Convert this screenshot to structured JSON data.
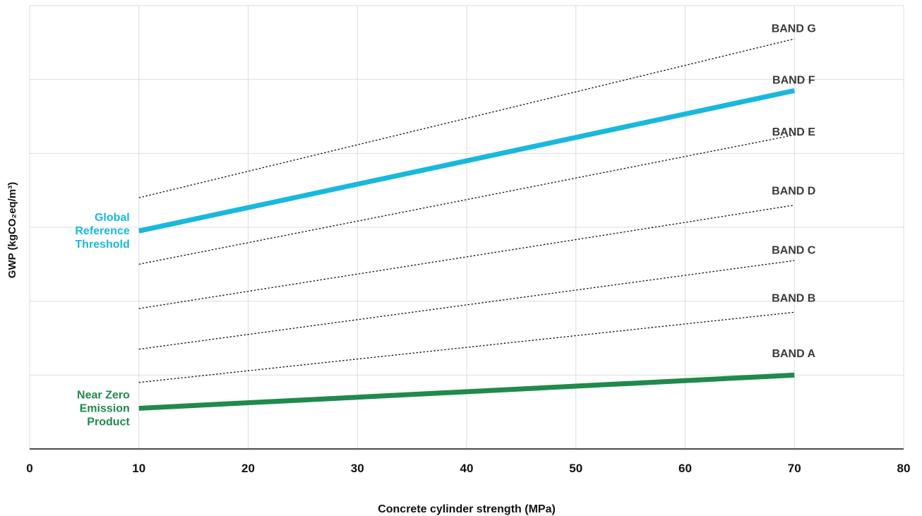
{
  "chart_data": {
    "type": "line",
    "title": "",
    "xlabel": "Concrete cylinder strength (MPa)",
    "ylabel": "GWP (kgCO₂eq/m³)",
    "xlim": [
      0,
      80
    ],
    "x_ticks": [
      "0",
      "10",
      "20",
      "30",
      "40",
      "50",
      "60",
      "70",
      "80"
    ],
    "ylim": [
      0,
      6
    ],
    "y_tick_labels_shown": false,
    "grid": true,
    "series": [
      {
        "name": "Near Zero Emission Product",
        "label_lines": [
          "Near Zero",
          "Emission",
          "Product"
        ],
        "style": "solid-thick",
        "color": "#1f8a4c",
        "x": [
          10,
          70
        ],
        "y": [
          0.55,
          1.0
        ]
      },
      {
        "name": "Global Reference Threshold",
        "label_lines": [
          "Global",
          "Reference",
          "Threshold"
        ],
        "style": "solid-thick",
        "color": "#19b8dd",
        "x": [
          10,
          70
        ],
        "y": [
          2.95,
          4.85
        ]
      }
    ],
    "band_boundaries": [
      {
        "style": "dotted",
        "color": "#111111",
        "x": [
          10,
          70
        ],
        "y": [
          0.9,
          1.85
        ]
      },
      {
        "style": "dotted",
        "color": "#111111",
        "x": [
          10,
          70
        ],
        "y": [
          1.35,
          2.55
        ]
      },
      {
        "style": "dotted",
        "color": "#111111",
        "x": [
          10,
          70
        ],
        "y": [
          1.9,
          3.3
        ]
      },
      {
        "style": "dotted",
        "color": "#111111",
        "x": [
          10,
          70
        ],
        "y": [
          2.5,
          4.25
        ]
      },
      {
        "style": "dotted",
        "color": "#111111",
        "x": [
          10,
          70
        ],
        "y": [
          3.4,
          5.55
        ]
      }
    ],
    "band_labels": [
      {
        "text": "BAND A",
        "x": 70,
        "y": 1.3
      },
      {
        "text": "BAND B",
        "x": 70,
        "y": 2.05
      },
      {
        "text": "BAND C",
        "x": 70,
        "y": 2.7
      },
      {
        "text": "BAND D",
        "x": 70,
        "y": 3.5
      },
      {
        "text": "BAND E",
        "x": 70,
        "y": 4.3
      },
      {
        "text": "BAND F",
        "x": 70,
        "y": 5.0
      },
      {
        "text": "BAND G",
        "x": 70,
        "y": 5.7
      }
    ]
  }
}
